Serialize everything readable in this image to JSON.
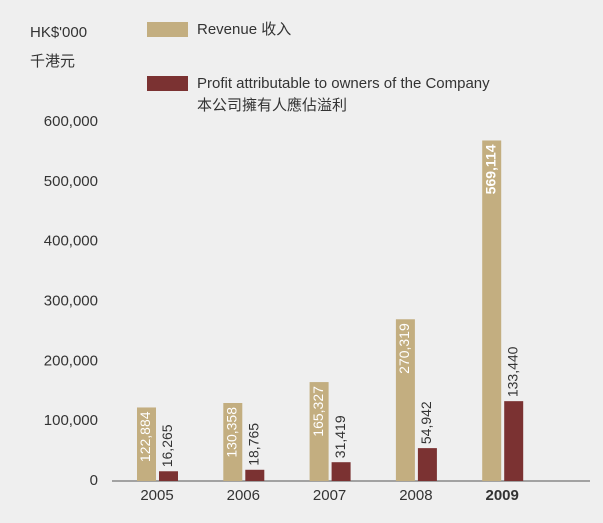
{
  "chart_data": {
    "type": "bar",
    "y_unit_label": [
      "HK$'000",
      "千港元"
    ],
    "categories": [
      "2005",
      "2006",
      "2007",
      "2008",
      "2009"
    ],
    "highlight": "2009",
    "series": [
      {
        "name": "Revenue 收入",
        "color": "#c3ae80",
        "values": [
          122884,
          130358,
          165327,
          270319,
          569114
        ],
        "value_labels": [
          "122,884",
          "130,358",
          "165,327",
          "270,319",
          "569,114"
        ]
      },
      {
        "name": "Profit attributable to owners of the Company\n本公司擁有人應佔溢利",
        "color": "#7b3232",
        "values": [
          16265,
          18765,
          31419,
          54942,
          133440
        ],
        "value_labels": [
          "16,265",
          "18,765",
          "31,419",
          "54,942",
          "133,440"
        ]
      }
    ],
    "ylim": [
      0,
      600000
    ],
    "yticks": [
      0,
      {
        "value": 100000,
        "label": "100,000"
      },
      {
        "value": 200000,
        "label": "200,000"
      },
      {
        "value": 300000,
        "label": "300,000"
      },
      {
        "value": 400000,
        "label": "400,000"
      },
      {
        "value": 500000,
        "label": "500,000"
      },
      {
        "value": 600000,
        "label": "600,000"
      }
    ],
    "grid": false
  }
}
